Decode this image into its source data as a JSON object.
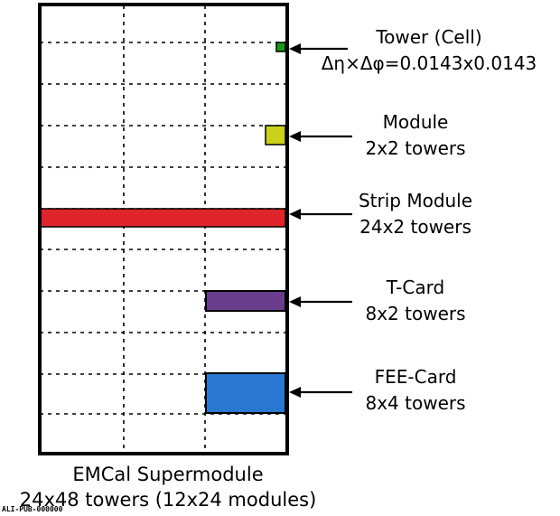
{
  "labels": {
    "tower": {
      "line1": "Tower (Cell)",
      "line2": "Δη×Δφ=0.0143x0.0143"
    },
    "module": {
      "line1": "Module",
      "line2": "2x2 towers"
    },
    "strip": {
      "line1": "Strip Module",
      "line2": "24x2 towers"
    },
    "tcard": {
      "line1": "T-Card",
      "line2": "8x2 towers"
    },
    "fee": {
      "line1": "FEE-Card",
      "line2": "8x4 towers"
    }
  },
  "caption": {
    "line1": "EMCal Supermodule",
    "line2": "24x48 towers (12x24 modules)"
  },
  "watermark": "ALI-PUB-000000",
  "colors": {
    "tower": "#1a9a1a",
    "module": "#c9d11a",
    "strip": "#e0242b",
    "tcard": "#6a3d8c",
    "fee": "#2a78d2",
    "outline": "#000000"
  }
}
